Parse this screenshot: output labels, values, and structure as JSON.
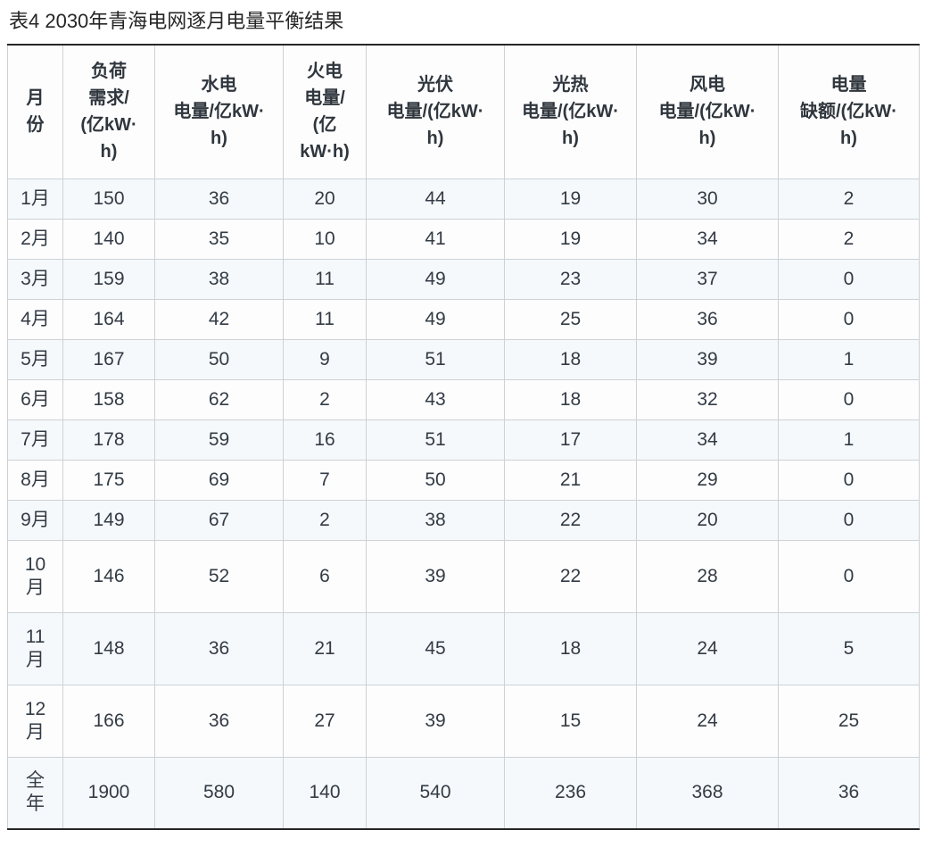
{
  "title": "表4 2030年青海电网逐月电量平衡结果",
  "table": {
    "columns": [
      {
        "key": "month",
        "label": "月\n份"
      },
      {
        "key": "load",
        "label": "负荷\n需求/\n(亿kW·\nh)"
      },
      {
        "key": "hydro",
        "label": "水电\n电量/亿kW·\nh)"
      },
      {
        "key": "thermal",
        "label": "火电\n电量/\n(亿\nkW·h)"
      },
      {
        "key": "pv",
        "label": "光伏\n电量/(亿kW·\nh)"
      },
      {
        "key": "csp",
        "label": "光热\n电量/(亿kW·\nh)"
      },
      {
        "key": "wind",
        "label": "风电\n电量/(亿kW·\nh)"
      },
      {
        "key": "shortage",
        "label": "电量\n缺额/(亿kW·\nh)"
      }
    ],
    "rows": [
      {
        "month": "1月",
        "values": [
          150,
          36,
          20,
          44,
          19,
          30,
          2
        ]
      },
      {
        "month": "2月",
        "values": [
          140,
          35,
          10,
          41,
          19,
          34,
          2
        ]
      },
      {
        "month": "3月",
        "values": [
          159,
          38,
          11,
          49,
          23,
          37,
          0
        ]
      },
      {
        "month": "4月",
        "values": [
          164,
          42,
          11,
          49,
          25,
          36,
          0
        ]
      },
      {
        "month": "5月",
        "values": [
          167,
          50,
          9,
          51,
          18,
          39,
          1
        ]
      },
      {
        "month": "6月",
        "values": [
          158,
          62,
          2,
          43,
          18,
          32,
          0
        ]
      },
      {
        "month": "7月",
        "values": [
          178,
          59,
          16,
          51,
          17,
          34,
          1
        ]
      },
      {
        "month": "8月",
        "values": [
          175,
          69,
          7,
          50,
          21,
          29,
          0
        ]
      },
      {
        "month": "9月",
        "values": [
          149,
          67,
          2,
          38,
          22,
          20,
          0
        ]
      },
      {
        "month": "10\n月",
        "values": [
          146,
          52,
          6,
          39,
          22,
          28,
          0
        ]
      },
      {
        "month": "11\n月",
        "values": [
          148,
          36,
          21,
          45,
          18,
          24,
          5
        ]
      },
      {
        "month": "12\n月",
        "values": [
          166,
          36,
          27,
          39,
          15,
          24,
          25
        ]
      },
      {
        "month": "全\n年",
        "values": [
          1900,
          580,
          140,
          540,
          236,
          368,
          36
        ]
      }
    ]
  },
  "colors": {
    "stripe_row_bg": "#f5f9fc",
    "plain_row_bg": "#fdfdfe",
    "heavy_rule": "#262626",
    "grid_line": "#ccd2d6",
    "text": "#333b44"
  }
}
